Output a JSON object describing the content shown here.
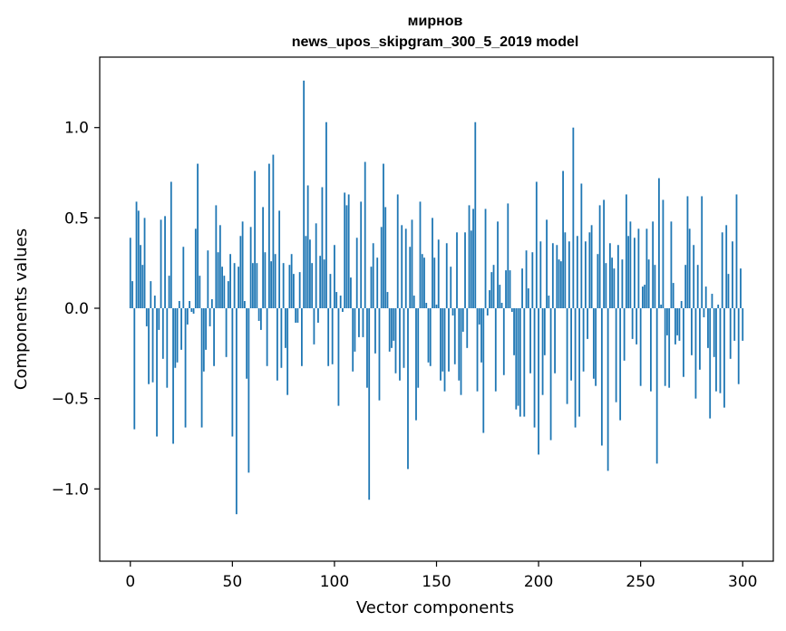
{
  "chart_data": {
    "type": "bar",
    "title_lines": [
      "мирнов",
      "news_upos_skipgram_300_5_2019 model"
    ],
    "xlabel": "Vector components",
    "ylabel": "Components values",
    "xlim": [
      -15,
      315
    ],
    "ylim": [
      -1.4,
      1.39
    ],
    "xticks": [
      0,
      50,
      100,
      150,
      200,
      250,
      300
    ],
    "xtick_labels": [
      "0",
      "50",
      "100",
      "150",
      "200",
      "250",
      "300"
    ],
    "yticks": [
      -1.0,
      -0.5,
      0.0,
      0.5,
      1.0
    ],
    "ytick_labels": [
      "−1.0",
      "−0.5",
      "0.0",
      "0.5",
      "1.0"
    ],
    "bar_color": "#1f77b4",
    "values": [
      0.39,
      0.15,
      -0.67,
      0.59,
      0.54,
      0.35,
      0.24,
      0.5,
      -0.1,
      -0.42,
      0.15,
      -0.41,
      0.07,
      -0.71,
      -0.12,
      0.49,
      -0.28,
      0.51,
      -0.44,
      0.18,
      0.7,
      -0.75,
      -0.33,
      -0.3,
      0.04,
      -0.23,
      0.34,
      -0.66,
      -0.09,
      0.04,
      -0.02,
      -0.03,
      0.44,
      0.8,
      0.18,
      -0.66,
      -0.35,
      -0.23,
      0.32,
      -0.1,
      0.05,
      -0.32,
      0.57,
      0.31,
      0.46,
      0.23,
      0.18,
      -0.27,
      0.15,
      0.3,
      -0.71,
      0.25,
      -1.14,
      0.23,
      0.4,
      0.48,
      0.04,
      -0.39,
      -0.91,
      0.45,
      0.25,
      0.76,
      0.25,
      -0.07,
      -0.12,
      0.56,
      0.31,
      -0.32,
      0.8,
      0.26,
      0.85,
      0.3,
      -0.4,
      0.54,
      -0.33,
      0.25,
      -0.22,
      -0.48,
      0.24,
      0.3,
      0.19,
      -0.08,
      -0.08,
      0.2,
      -0.32,
      1.26,
      0.4,
      0.68,
      0.38,
      0.25,
      -0.2,
      0.47,
      -0.08,
      0.29,
      0.67,
      0.27,
      1.03,
      -0.32,
      0.19,
      -0.31,
      0.35,
      0.09,
      -0.54,
      0.07,
      -0.02,
      0.64,
      0.57,
      0.63,
      0.17,
      -0.35,
      -0.24,
      0.39,
      -0.16,
      0.59,
      -0.16,
      0.81,
      -0.44,
      -1.06,
      0.23,
      0.36,
      -0.25,
      0.28,
      -0.51,
      0.45,
      0.8,
      0.56,
      0.09,
      -0.24,
      -0.22,
      -0.18,
      -0.36,
      0.63,
      -0.4,
      0.46,
      -0.33,
      0.44,
      -0.89,
      0.34,
      0.49,
      0.07,
      -0.62,
      -0.44,
      0.59,
      0.3,
      0.28,
      0.03,
      -0.3,
      -0.32,
      0.5,
      0.28,
      0.02,
      0.38,
      -0.4,
      -0.35,
      -0.46,
      0.36,
      -0.35,
      0.23,
      -0.04,
      -0.31,
      0.42,
      -0.4,
      -0.48,
      -0.13,
      0.42,
      -0.22,
      0.57,
      0.43,
      0.55,
      1.03,
      -0.46,
      -0.09,
      -0.3,
      -0.69,
      0.55,
      -0.04,
      0.1,
      0.2,
      0.24,
      -0.46,
      0.48,
      0.13,
      0.03,
      -0.37,
      0.21,
      0.58,
      0.21,
      -0.02,
      -0.26,
      -0.56,
      -0.54,
      -0.6,
      0.22,
      -0.6,
      0.32,
      0.11,
      -0.36,
      0.31,
      -0.66,
      0.7,
      -0.81,
      0.37,
      -0.48,
      -0.26,
      0.49,
      0.07,
      -0.73,
      0.36,
      -0.36,
      0.35,
      0.27,
      0.26,
      0.76,
      0.42,
      -0.53,
      0.37,
      -0.4,
      1.0,
      -0.66,
      0.4,
      -0.6,
      0.69,
      -0.35,
      0.37,
      -0.17,
      0.42,
      0.46,
      -0.39,
      -0.43,
      0.3,
      0.57,
      -0.76,
      0.6,
      0.25,
      -0.9,
      0.36,
      0.28,
      0.22,
      -0.52,
      0.35,
      -0.62,
      0.27,
      -0.29,
      0.63,
      0.4,
      0.48,
      -0.17,
      0.39,
      -0.2,
      0.44,
      -0.43,
      0.12,
      0.13,
      0.44,
      0.27,
      -0.46,
      0.48,
      0.24,
      -0.86,
      0.72,
      0.02,
      0.6,
      -0.43,
      -0.15,
      -0.44,
      0.48,
      0.14,
      -0.2,
      -0.15,
      -0.18,
      0.04,
      -0.38,
      0.24,
      0.62,
      0.44,
      -0.26,
      0.35,
      -0.5,
      0.24,
      -0.34,
      0.62,
      -0.05,
      0.12,
      -0.22,
      -0.61,
      0.08,
      -0.27,
      -0.46,
      0.02,
      -0.47,
      0.42,
      -0.55,
      0.46,
      0.19,
      -0.28,
      0.37,
      -0.18,
      0.63,
      -0.42,
      0.22,
      -0.18
    ]
  }
}
